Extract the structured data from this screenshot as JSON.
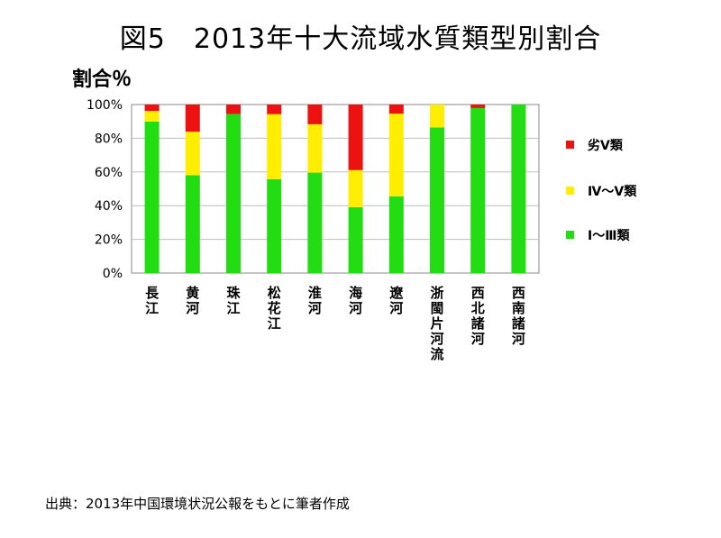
{
  "title": "図5　2013年十大流域水質類型別割合",
  "ylabel": "割合％",
  "source": "出典：2013年中国環境状況公報をもとに筆者作成",
  "colors": {
    "green": "#22dd11",
    "yellow": "#ffee00",
    "red": "#ee1111",
    "grid": "#bdbdbd",
    "border": "#888888"
  },
  "chart_data": {
    "type": "bar",
    "stacked": true,
    "categories": [
      "長江",
      "黄河",
      "珠江",
      "松花江",
      "淮河",
      "海河",
      "遼河",
      "浙閩片河流",
      "西北諸河",
      "西南諸河"
    ],
    "series": [
      {
        "name": "Ⅰ～Ⅲ類",
        "color": "#22dd11",
        "values": [
          89.9,
          58.1,
          94.4,
          55.7,
          59.6,
          39.1,
          45.5,
          86.4,
          97.9,
          100
        ]
      },
      {
        "name": "Ⅳ～Ⅴ類",
        "color": "#ffee00",
        "values": [
          6.3,
          25.8,
          0,
          38.6,
          28.7,
          22.0,
          49.1,
          13.6,
          0,
          0
        ]
      },
      {
        "name": "劣Ⅴ類",
        "color": "#ee1111",
        "values": [
          3.8,
          16.1,
          5.6,
          5.7,
          11.7,
          38.9,
          5.4,
          0,
          2.1,
          0
        ]
      }
    ],
    "ylim": [
      0,
      100
    ],
    "yticks": [
      "0%",
      "20%",
      "40%",
      "60%",
      "80%",
      "100%"
    ],
    "legend_order": [
      "劣Ⅴ類",
      "Ⅳ～Ⅴ類",
      "Ⅰ～Ⅲ類"
    ],
    "legend_position": "right",
    "grid": true
  }
}
